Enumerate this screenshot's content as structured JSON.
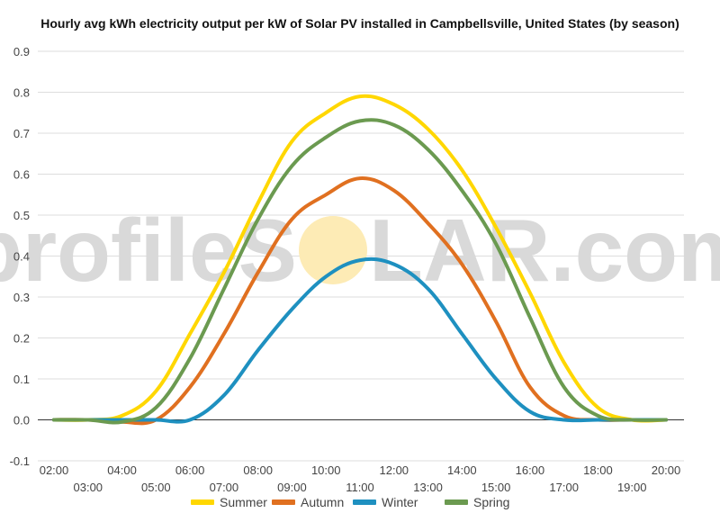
{
  "chart_data": {
    "type": "line",
    "title": "Hourly avg kWh electricity output per kW of Solar PV installed in Campbellsville, United States (by season)",
    "xlabel": "",
    "ylabel": "",
    "x": [
      "02:00",
      "03:00",
      "04:00",
      "05:00",
      "06:00",
      "07:00",
      "08:00",
      "09:00",
      "10:00",
      "11:00",
      "12:00",
      "13:00",
      "14:00",
      "15:00",
      "16:00",
      "17:00",
      "18:00",
      "19:00",
      "20:00"
    ],
    "ylim": [
      -0.1,
      0.9
    ],
    "yticks": [
      "-0.1",
      "0.0",
      "0.1",
      "0.2",
      "0.3",
      "0.4",
      "0.5",
      "0.6",
      "0.7",
      "0.8",
      "0.9"
    ],
    "grid": true,
    "legend_position": "bottom",
    "watermark": {
      "left": "profileS",
      "right": "LAR.com",
      "sun_color": "#FDEBB5",
      "color": "#D9D9D9"
    },
    "series": [
      {
        "name": "Summer",
        "color": "#FFD700",
        "values": [
          0,
          0,
          0.01,
          0.07,
          0.21,
          0.36,
          0.53,
          0.68,
          0.75,
          0.79,
          0.77,
          0.71,
          0.61,
          0.47,
          0.31,
          0.14,
          0.03,
          0,
          0
        ]
      },
      {
        "name": "Autumn",
        "color": "#E07020",
        "values": [
          0,
          0,
          -0.005,
          0,
          0.08,
          0.21,
          0.36,
          0.49,
          0.55,
          0.59,
          0.56,
          0.48,
          0.38,
          0.24,
          0.08,
          0.01,
          0,
          0,
          0
        ]
      },
      {
        "name": "Winter",
        "color": "#1E90C0",
        "values": [
          0,
          0,
          0,
          0,
          0,
          0.06,
          0.17,
          0.27,
          0.35,
          0.39,
          0.38,
          0.32,
          0.21,
          0.1,
          0.02,
          0,
          0,
          0,
          0
        ]
      },
      {
        "name": "Spring",
        "color": "#6B9A50",
        "values": [
          0,
          0,
          -0.005,
          0.03,
          0.15,
          0.32,
          0.49,
          0.62,
          0.69,
          0.73,
          0.72,
          0.66,
          0.56,
          0.43,
          0.25,
          0.08,
          0.01,
          0,
          0
        ]
      }
    ]
  }
}
